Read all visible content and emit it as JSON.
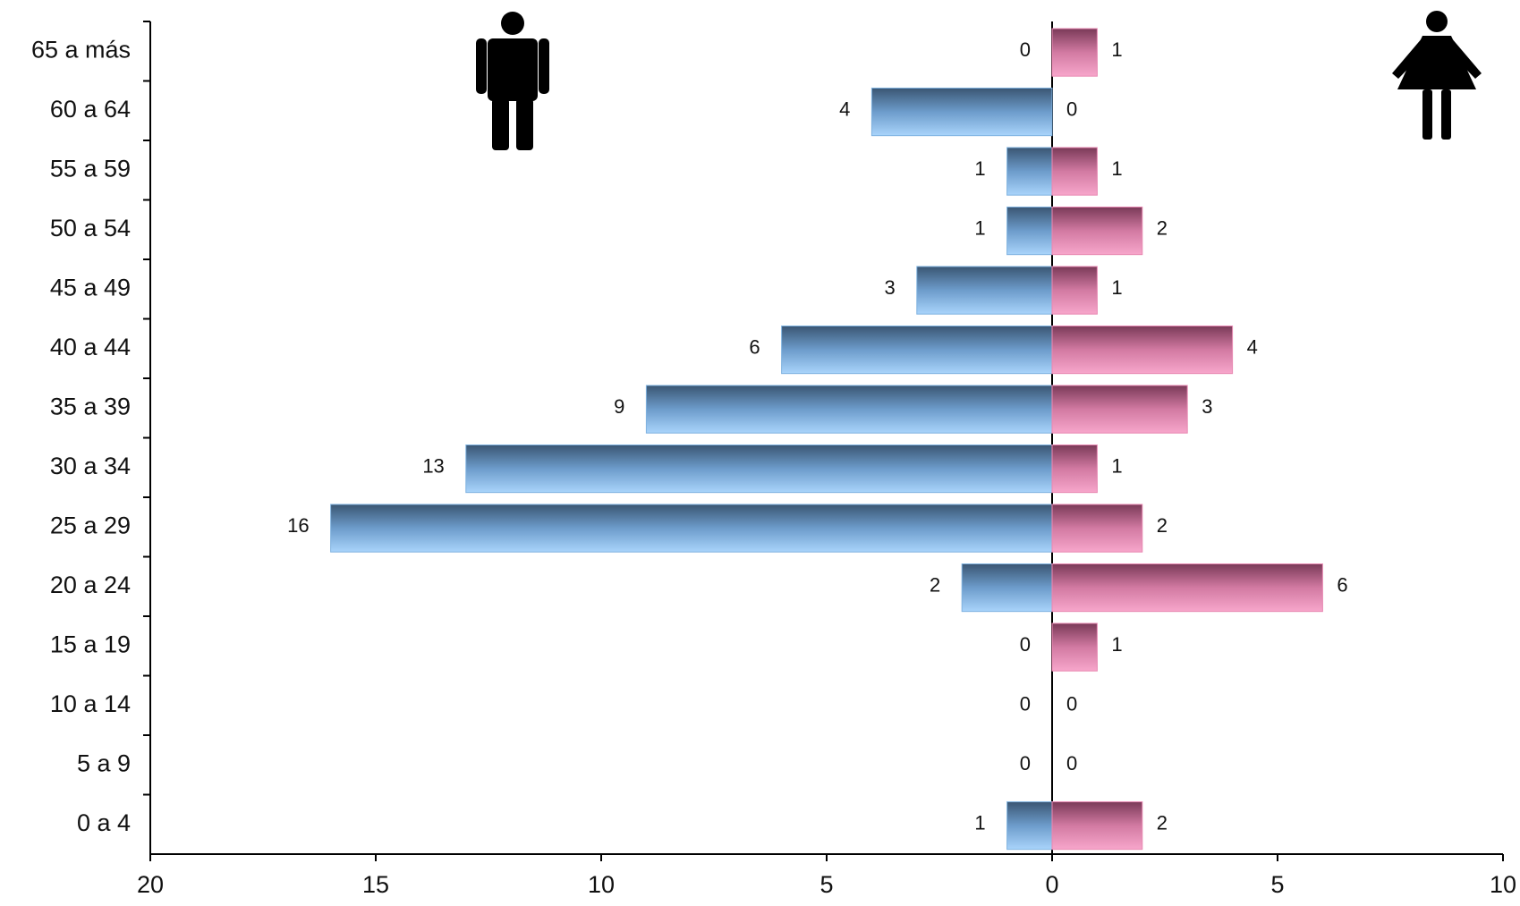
{
  "chart_data": {
    "type": "pyramid",
    "categories": [
      "65 a más",
      "60 a 64",
      "55 a 59",
      "50 a 54",
      "45 a 49",
      "40 a 44",
      "35 a 39",
      "30 a 34",
      "25 a 29",
      "20 a 24",
      "15 a 19",
      "10 a 14",
      "5 a 9",
      "0 a 4"
    ],
    "series": [
      {
        "color": "#7fb2e0",
        "values": [
          0,
          4,
          1,
          1,
          3,
          6,
          9,
          13,
          16,
          2,
          0,
          0,
          0,
          1
        ]
      },
      {
        "color": "#e889b2",
        "values": [
          1,
          0,
          1,
          2,
          1,
          4,
          3,
          1,
          2,
          6,
          1,
          0,
          0,
          2
        ]
      }
    ],
    "xlim": [
      -20,
      10
    ],
    "xticks": [
      {
        "value": -20,
        "label": "20"
      },
      {
        "value": -15,
        "label": "15"
      },
      {
        "value": -10,
        "label": "10"
      },
      {
        "value": -5,
        "label": "5"
      },
      0,
      5,
      10
    ]
  }
}
